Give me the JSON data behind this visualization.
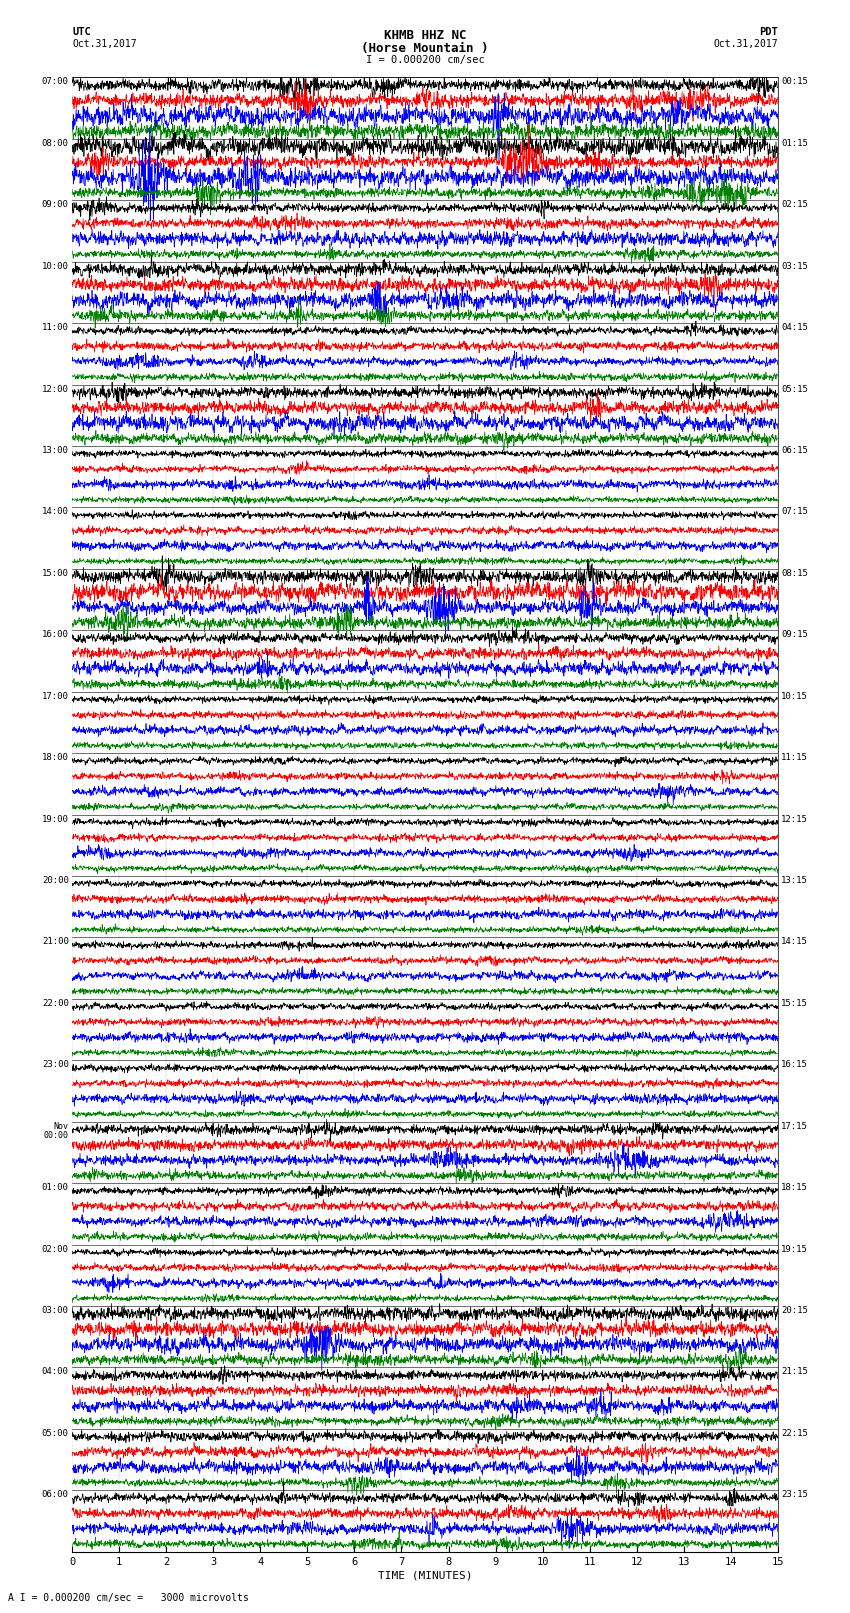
{
  "title_line1": "KHMB HHZ NC",
  "title_line2": "(Horse Mountain )",
  "scale_label": "I = 0.000200 cm/sec",
  "left_corner": "UTC\nOct.31,2017",
  "right_corner": "PDT\nOct.31,2017",
  "xlabel": "TIME (MINUTES)",
  "footnote": "A I = 0.000200 cm/sec =   3000 microvolts",
  "left_times": [
    "07:00",
    "08:00",
    "09:00",
    "10:00",
    "11:00",
    "12:00",
    "13:00",
    "14:00",
    "15:00",
    "16:00",
    "17:00",
    "18:00",
    "19:00",
    "20:00",
    "21:00",
    "22:00",
    "23:00",
    "Nov\n00:00",
    "01:00",
    "02:00",
    "03:00",
    "04:00",
    "05:00",
    "06:00"
  ],
  "right_times": [
    "00:15",
    "01:15",
    "02:15",
    "03:15",
    "04:15",
    "05:15",
    "06:15",
    "07:15",
    "08:15",
    "09:15",
    "10:15",
    "11:15",
    "12:15",
    "13:15",
    "14:15",
    "15:15",
    "16:15",
    "17:15",
    "18:15",
    "19:15",
    "20:15",
    "21:15",
    "22:15",
    "23:15"
  ],
  "n_groups": 24,
  "n_traces_per_group": 4,
  "colors": [
    "black",
    "red",
    "blue",
    "green"
  ],
  "bg_color": "white",
  "xmin": 0,
  "xmax": 15,
  "figwidth": 8.5,
  "figheight": 16.13,
  "dpi": 100,
  "trace_amplitude": 0.42,
  "noise_base": 0.18,
  "linewidth": 0.5
}
